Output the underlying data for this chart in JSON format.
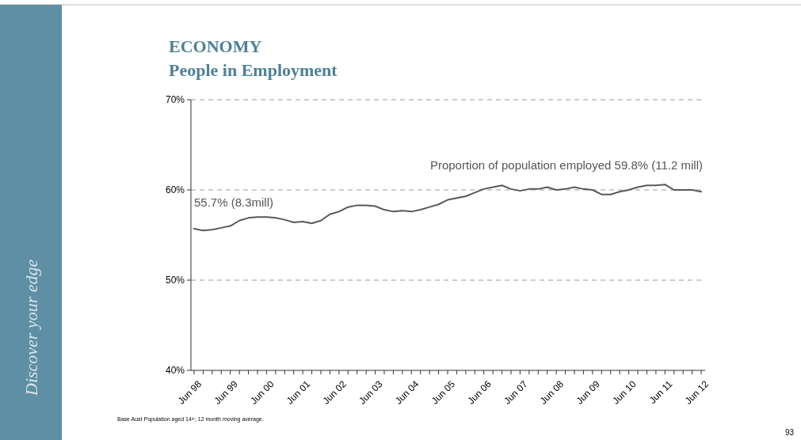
{
  "chart_data": {
    "type": "line",
    "title": "ECONOMY",
    "subtitle": "People in Employment",
    "categories": [
      "Jun 98",
      null,
      null,
      null,
      "Jun 99",
      null,
      null,
      null,
      "Jun 00",
      null,
      null,
      null,
      "Jun 01",
      null,
      null,
      null,
      "Jun 02",
      null,
      null,
      null,
      "Jun 03",
      null,
      null,
      null,
      "Jun 04",
      null,
      null,
      null,
      "Jun 05",
      null,
      null,
      null,
      "Jun 06",
      null,
      null,
      null,
      "Jun 07",
      null,
      null,
      null,
      "Jun 08",
      null,
      null,
      null,
      "Jun 09",
      null,
      null,
      null,
      "Jun 10",
      null,
      null,
      null,
      "Jun 11",
      null,
      null,
      null,
      "Jun 12"
    ],
    "series": [
      {
        "color": "#595959",
        "values": [
          55.7,
          55.5,
          55.6,
          55.8,
          56.0,
          56.6,
          56.9,
          57.0,
          57.0,
          56.9,
          56.7,
          56.4,
          56.5,
          56.3,
          56.6,
          57.3,
          57.6,
          58.1,
          58.3,
          58.3,
          58.2,
          57.8,
          57.6,
          57.7,
          57.6,
          57.8,
          58.1,
          58.4,
          58.9,
          59.1,
          59.3,
          59.7,
          60.1,
          60.3,
          60.5,
          60.1,
          59.9,
          60.1,
          60.1,
          60.3,
          60.0,
          60.1,
          60.3,
          60.1,
          60.0,
          59.5,
          59.5,
          59.8,
          60.0,
          60.3,
          60.5,
          60.5,
          60.6,
          60.0,
          60.0,
          60.0,
          59.8
        ]
      }
    ],
    "ylim": [
      40,
      70
    ],
    "yticks": [
      {
        "value": 40,
        "label": "40%"
      },
      {
        "value": 50,
        "label": "50%"
      },
      {
        "value": 60,
        "label": "60%"
      },
      {
        "value": 70,
        "label": "70%"
      }
    ],
    "grid": "y",
    "marker": "none",
    "line_style": "solid",
    "annotations": [
      {
        "text": "55.7% (8.3mill)",
        "x": "Jun 98",
        "y": 55.7
      },
      {
        "text": "Proportion of population employed  59.8% (11.2 mill)",
        "x": "Jun 12",
        "y": 59.8
      },
      "Base Aust Population aged 14+; 12 month moving average.",
      "93",
      "Discover your edge"
    ]
  }
}
